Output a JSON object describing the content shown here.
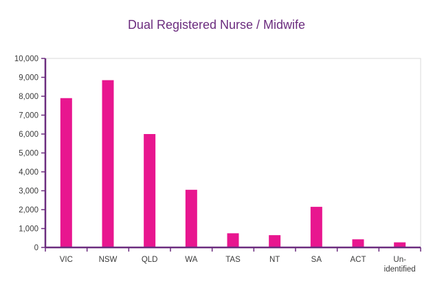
{
  "chart_data": {
    "type": "bar",
    "title": "Dual Registered Nurse / Midwife",
    "xlabel": "",
    "ylabel": "",
    "categories": [
      "VIC",
      "NSW",
      "QLD",
      "WA",
      "TAS",
      "NT",
      "SA",
      "ACT",
      "Un-identified"
    ],
    "category_label_lines": [
      [
        "VIC"
      ],
      [
        "NSW"
      ],
      [
        "QLD"
      ],
      [
        "WA"
      ],
      [
        "TAS"
      ],
      [
        "NT"
      ],
      [
        "SA"
      ],
      [
        "ACT"
      ],
      [
        "Un-",
        "identified"
      ]
    ],
    "values": [
      7900,
      8850,
      6000,
      3050,
      750,
      650,
      2150,
      430,
      270
    ],
    "ylim": [
      0,
      10000
    ],
    "yticks": [
      0,
      1000,
      2000,
      3000,
      4000,
      5000,
      6000,
      7000,
      8000,
      9000,
      10000
    ],
    "ytick_labels": [
      "0",
      "1,000",
      "2,000",
      "3,000",
      "4,000",
      "5,000",
      "6,000",
      "7,000",
      "8,000",
      "9,000",
      "10,000"
    ],
    "grid": false,
    "legend": "none",
    "colors": {
      "bar": "#e8168f",
      "axis": "#6b2c7e",
      "frame": "#d9d9d9",
      "title": "#6b2c7e"
    }
  }
}
